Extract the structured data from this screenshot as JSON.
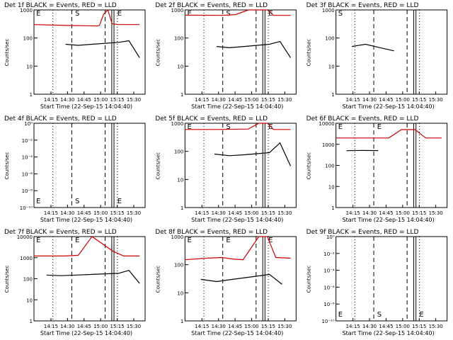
{
  "colors": {
    "events": "#000000",
    "lld": "#cc0000",
    "axis": "#000000"
  },
  "chart_data": [
    {
      "type": "line",
      "title": "Det 1f BLACK = Events, RED = LLD",
      "ylabel": "Counts/sec",
      "xlabel": "Start Time (22-Sep-15 14:04:40)",
      "xticks": [
        "14:15",
        "14:30",
        "14:45",
        "15:00",
        "15:15",
        "15:30"
      ],
      "yticks": [
        "1",
        "10",
        "100",
        "1000"
      ],
      "ylim": [
        1,
        1000
      ],
      "scale": "log",
      "markers": [
        "E",
        "S",
        "E"
      ],
      "series": [
        {
          "color": "red",
          "x": [
            0,
            0.3,
            0.6,
            0.62,
            0.66,
            0.7,
            0.74,
            0.8,
            1.0,
            1.15
          ],
          "y": [
            300,
            280,
            270,
            280,
            700,
            1000,
            320,
            300,
            300,
            300
          ]
        },
        {
          "color": "black",
          "x": [
            0.3,
            0.42,
            0.55,
            0.8,
            0.9,
            1.02
          ],
          "y": [
            60,
            55,
            60,
            70,
            80,
            20
          ]
        }
      ]
    },
    {
      "type": "line",
      "title": "Det 2f BLACK = Events, RED = LLD",
      "ylabel": "Counts/sec",
      "xlabel": "Start Time (22-Sep-15 14:04:40)",
      "xticks": [
        "14:15",
        "14:30",
        "14:45",
        "15:00",
        "15:15",
        "15:30"
      ],
      "yticks": [
        "1",
        "10",
        "100",
        "1000"
      ],
      "ylim": [
        1,
        1000
      ],
      "scale": "log",
      "markers": [
        "E",
        "S",
        "E"
      ],
      "series": [
        {
          "color": "red",
          "x": [
            0,
            0.35,
            0.48,
            0.6,
            0.7,
            0.78,
            0.84,
            1.0,
            1.15
          ],
          "y": [
            650,
            640,
            680,
            1000,
            1000,
            1000,
            640,
            640,
            640
          ]
        },
        {
          "color": "black",
          "x": [
            0.3,
            0.42,
            0.56,
            0.8,
            0.9,
            1.02
          ],
          "y": [
            50,
            45,
            50,
            60,
            75,
            20
          ]
        }
      ]
    },
    {
      "type": "line",
      "title": "Det 3f BLACK = Events, RED = LLD",
      "ylabel": "Counts/sec",
      "xlabel": "Start Time (22-Sep-15 14:04:40)",
      "xticks": [
        "14:15",
        "14:30",
        "14:45",
        "15:00",
        "15:15",
        "15:30"
      ],
      "yticks": [
        "1",
        "10",
        "100",
        "1000"
      ],
      "ylim": [
        1,
        1000
      ],
      "scale": "log",
      "markers": [
        "S"
      ],
      "series": [
        {
          "color": "black",
          "x": [
            0.15,
            0.28,
            0.42,
            0.55
          ],
          "y": [
            50,
            60,
            45,
            35
          ]
        }
      ]
    },
    {
      "type": "line",
      "title": "Det 4f BLACK = Events, RED = LLD",
      "ylabel": "Counts/sec",
      "xlabel": "Start Time (22-Sep-15 14:04:40)",
      "xticks": [
        "14:15",
        "14:30",
        "14:45",
        "15:00",
        "15:15",
        "15:30"
      ],
      "yticks": [
        "10⁻¹⁰",
        "10⁻⁸",
        "10⁻⁶",
        "10⁻⁴",
        "10⁻²",
        "10⁰"
      ],
      "scale": "log",
      "markers": [
        "E",
        "S",
        "E"
      ],
      "series": []
    },
    {
      "type": "line",
      "title": "Det 5f BLACK = Events, RED = LLD",
      "ylabel": "Counts/sec",
      "xlabel": "Start Time (22-Sep-15 14:04:40)",
      "xticks": [
        "14:15",
        "14:30",
        "14:45",
        "15:00",
        "15:15",
        "15:30"
      ],
      "yticks": [
        "1",
        "10",
        "100",
        "1000"
      ],
      "ylim": [
        1,
        1000
      ],
      "scale": "log",
      "markers": [
        "E",
        "S",
        "E"
      ],
      "series": [
        {
          "color": "red",
          "x": [
            0,
            0.3,
            0.6,
            0.7,
            0.78,
            0.84,
            1.0,
            1.15
          ],
          "y": [
            600,
            600,
            620,
            1000,
            1000,
            600,
            600,
            600
          ]
        },
        {
          "color": "black",
          "x": [
            0.28,
            0.42,
            0.55,
            0.8,
            0.9,
            1.02
          ],
          "y": [
            80,
            70,
            75,
            90,
            200,
            30
          ]
        }
      ]
    },
    {
      "type": "line",
      "title": "Det 6f BLACK = Events, RED = LLD",
      "ylabel": "Counts/sec",
      "xlabel": "Start Time (22-Sep-15 14:04:40)",
      "xticks": [
        "14:15",
        "14:30",
        "14:45",
        "15:00",
        "15:15",
        "15:30"
      ],
      "yticks": [
        "1",
        "10",
        "100",
        "1000",
        "10000"
      ],
      "ylim": [
        1,
        10000
      ],
      "scale": "log",
      "markers": [
        "E",
        "E"
      ],
      "series": [
        {
          "color": "red",
          "x": [
            0,
            0.35,
            0.5,
            0.62,
            0.75,
            0.85,
            1.0,
            1.15
          ],
          "y": [
            2000,
            2000,
            2000,
            5000,
            5000,
            2000,
            2000,
            2000
          ]
        },
        {
          "color": "black",
          "x": [
            0.1,
            0.25,
            0.4
          ],
          "y": [
            500,
            510,
            505
          ]
        }
      ]
    },
    {
      "type": "line",
      "title": "Det 7f BLACK = Events, RED = LLD",
      "ylabel": "Counts/sec",
      "xlabel": "Start Time (22-Sep-15 14:04:40)",
      "xticks": [
        "14:15",
        "14:30",
        "14:45",
        "15:00",
        "15:15",
        "15:30"
      ],
      "yticks": [
        "1",
        "10",
        "100",
        "1000",
        "10000"
      ],
      "ylim": [
        1,
        10000
      ],
      "scale": "log",
      "markers": [
        "E",
        "E"
      ],
      "series": [
        {
          "color": "red",
          "x": [
            0,
            0.3,
            0.42,
            0.55,
            0.75,
            0.85,
            1.0,
            1.15
          ],
          "y": [
            1200,
            1200,
            1300,
            10000,
            2000,
            1200,
            1200,
            1200
          ]
        },
        {
          "color": "black",
          "x": [
            0.12,
            0.25,
            0.4,
            0.8,
            0.9,
            1.02
          ],
          "y": [
            150,
            140,
            150,
            180,
            250,
            60
          ]
        }
      ]
    },
    {
      "type": "line",
      "title": "Det 8f BLACK = Events, RED = LLD",
      "ylabel": "Counts/sec",
      "xlabel": "Start Time (22-Sep-15 14:04:40)",
      "xticks": [
        "14:15",
        "14:30",
        "14:45",
        "15:00",
        "15:15",
        "15:30"
      ],
      "yticks": [
        "1",
        "10",
        "100",
        "1000"
      ],
      "ylim": [
        1,
        1000
      ],
      "scale": "log",
      "markers": [
        "E",
        "E",
        "E"
      ],
      "series": [
        {
          "color": "red",
          "x": [
            0,
            0.2,
            0.35,
            0.45,
            0.55,
            0.7,
            0.78,
            0.86,
            1.0,
            1.15
          ],
          "y": [
            150,
            170,
            180,
            160,
            150,
            1000,
            1000,
            180,
            170,
            170
          ]
        },
        {
          "color": "black",
          "x": [
            0.15,
            0.3,
            0.45,
            0.7,
            0.8,
            0.92
          ],
          "y": [
            30,
            25,
            30,
            40,
            45,
            20
          ]
        }
      ]
    },
    {
      "type": "line",
      "title": "Det 9f BLACK = Events, RED = LLD",
      "ylabel": "Counts/sec",
      "xlabel": "Start Time (22-Sep-15 14:04:40)",
      "xticks": [
        "14:15",
        "14:30",
        "14:45",
        "15:00",
        "15:15",
        "15:30"
      ],
      "yticks": [
        "10⁻¹⁰",
        "10⁻⁸",
        "10⁻⁶",
        "10⁻⁴",
        "10⁻²",
        "10⁰"
      ],
      "scale": "log",
      "markers": [
        "E",
        "S",
        "E"
      ],
      "series": []
    }
  ]
}
